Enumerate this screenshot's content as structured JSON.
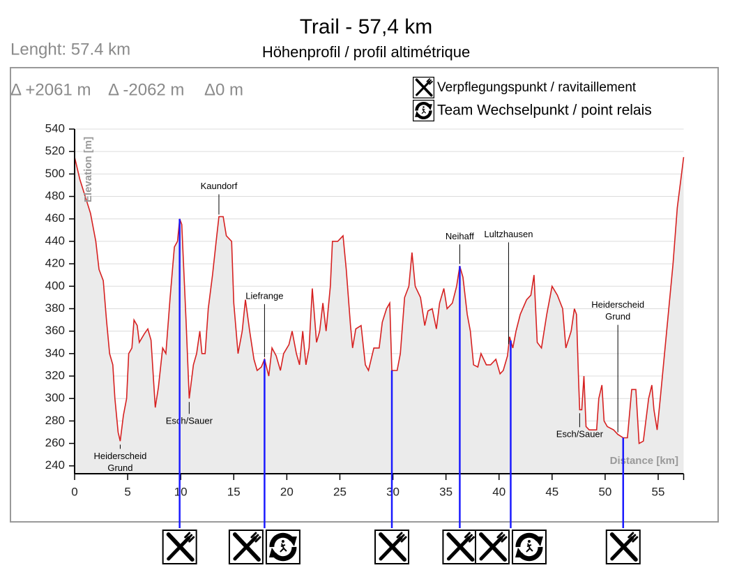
{
  "chart_data": {
    "type": "line",
    "title": "Trail - 57,4 km",
    "subtitle": "Höhenprofil / profil altimétrique",
    "length_label": "Lenght: 57.4 km",
    "stats": [
      "Δ +2061 m",
      "Δ -2062 m",
      "Δ0 m"
    ],
    "x_label": "Distance [km]",
    "y_label": "Elevation [m]",
    "color": "#d62020",
    "fill": "#ebebeb",
    "grid": true,
    "xlim": [
      0,
      57.4
    ],
    "ylim": [
      233,
      540
    ],
    "xticks": [
      0,
      5,
      10,
      15,
      20,
      25,
      30,
      35,
      40,
      45,
      50,
      55
    ],
    "yticks": [
      240,
      260,
      280,
      300,
      320,
      340,
      360,
      380,
      400,
      420,
      440,
      460,
      480,
      500,
      520,
      540
    ],
    "x": [
      0,
      0.5,
      1,
      1.5,
      2,
      2.3,
      2.7,
      3,
      3.3,
      3.6,
      3.8,
      4.1,
      4.3,
      4.6,
      4.9,
      5.1,
      5.4,
      5.6,
      5.9,
      6.1,
      6.6,
      6.9,
      7.2,
      7.6,
      7.9,
      8.3,
      8.6,
      9,
      9.4,
      9.7,
      9.9,
      10.1,
      10.5,
      10.8,
      11.2,
      11.5,
      11.8,
      12,
      12.3,
      12.6,
      13,
      13.4,
      13.6,
      14,
      14.3,
      14.8,
      15,
      15.4,
      15.8,
      16.1,
      16.5,
      16.9,
      17.2,
      17.6,
      17.9,
      18.3,
      18.6,
      19,
      19.4,
      19.7,
      20.2,
      20.5,
      20.9,
      21.2,
      21.5,
      21.8,
      22.1,
      22.4,
      22.8,
      23.1,
      23.4,
      23.7,
      24.1,
      24.3,
      24.8,
      25.3,
      25.6,
      26,
      26.2,
      26.5,
      27,
      27.4,
      27.7,
      28.2,
      28.7,
      29,
      29.4,
      29.7,
      29.9,
      30.4,
      30.7,
      31.1,
      31.5,
      31.8,
      32.1,
      32.6,
      33,
      33.3,
      33.7,
      34.1,
      34.4,
      34.8,
      35.1,
      35.6,
      36,
      36.3,
      36.6,
      37,
      37.3,
      37.6,
      38,
      38.3,
      38.8,
      39.2,
      39.7,
      40.1,
      40.4,
      40.8,
      41,
      41.3,
      41.6,
      42,
      42.6,
      43,
      43.3,
      43.6,
      44,
      44.5,
      45,
      45.5,
      46,
      46.3,
      46.8,
      47.1,
      47.3,
      47.5,
      47.6,
      47.8,
      48,
      48.2,
      48.5,
      49.2,
      49.4,
      49.7,
      49.9,
      50.2,
      50.8,
      51.2,
      51.7,
      52.1,
      52.5,
      52.9,
      53.2,
      53.6,
      54.1,
      54.4,
      54.6,
      54.9,
      55.2,
      55.6,
      56,
      56.4,
      56.8,
      57.2,
      57.4
    ],
    "values": [
      515,
      495,
      480,
      465,
      440,
      415,
      405,
      370,
      340,
      330,
      300,
      270,
      262,
      285,
      300,
      340,
      345,
      370,
      365,
      350,
      358,
      362,
      352,
      292,
      310,
      345,
      340,
      390,
      435,
      440,
      460,
      455,
      370,
      300,
      330,
      340,
      360,
      340,
      340,
      380,
      410,
      445,
      462,
      462,
      445,
      440,
      385,
      340,
      360,
      388,
      360,
      335,
      325,
      328,
      335,
      320,
      345,
      338,
      325,
      340,
      348,
      360,
      340,
      330,
      360,
      330,
      345,
      398,
      350,
      360,
      385,
      360,
      400,
      440,
      440,
      445,
      415,
      365,
      345,
      362,
      365,
      330,
      325,
      345,
      345,
      368,
      380,
      385,
      325,
      325,
      340,
      390,
      400,
      430,
      400,
      390,
      365,
      378,
      380,
      362,
      385,
      398,
      380,
      385,
      400,
      418,
      408,
      375,
      360,
      330,
      328,
      340,
      330,
      330,
      335,
      322,
      325,
      338,
      355,
      345,
      360,
      375,
      388,
      392,
      410,
      350,
      345,
      375,
      400,
      392,
      380,
      345,
      360,
      380,
      375,
      315,
      290,
      290,
      320,
      275,
      272,
      272,
      300,
      312,
      280,
      275,
      272,
      268,
      265,
      265,
      308,
      308,
      260,
      262,
      300,
      312,
      290,
      272,
      300,
      340,
      380,
      420,
      470,
      500,
      515
    ],
    "annotations": [
      {
        "x": 13.6,
        "lines": [
          "Kaundorf"
        ]
      },
      {
        "x": 17.9,
        "lines": [
          "Liefrange"
        ]
      },
      {
        "x": 36.3,
        "lines": [
          "Neihaff"
        ]
      },
      {
        "x": 40.9,
        "lines": [
          "Lultzhausen"
        ]
      },
      {
        "x": 51.2,
        "lines": [
          "Heiderscheid",
          "Grund"
        ]
      },
      {
        "x": 10.8,
        "lines": [
          "Esch/Sauer"
        ]
      },
      {
        "x": 4.3,
        "lines": [
          "Heiderscheid",
          "Grund"
        ]
      },
      {
        "x": 47.6,
        "lines": [
          "Esch/Sauer"
        ]
      }
    ],
    "legend": [
      {
        "icon": "food",
        "label": "Verpflegungspunkt / ravitaillement"
      },
      {
        "icon": "relay",
        "label": "Team Wechselpunkt / point relais"
      }
    ],
    "stations": [
      {
        "km": 9.9,
        "icons": [
          "food"
        ]
      },
      {
        "km": 17.9,
        "icons": [
          "food",
          "relay"
        ]
      },
      {
        "km": 29.9,
        "icons": [
          "food"
        ]
      },
      {
        "km": 36.3,
        "icons": [
          "food"
        ]
      },
      {
        "km": 41.1,
        "icons": [
          "food",
          "relay"
        ]
      },
      {
        "km": 51.7,
        "icons": [
          "food"
        ]
      }
    ]
  }
}
